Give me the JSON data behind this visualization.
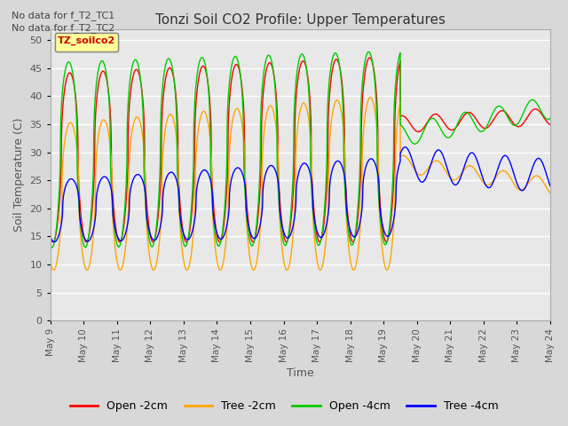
{
  "title": "Tonzi Soil CO2 Profile: Upper Temperatures",
  "xlabel": "Time",
  "ylabel": "Soil Temperature (C)",
  "ylim": [
    0,
    52
  ],
  "yticks": [
    0,
    5,
    10,
    15,
    20,
    25,
    30,
    35,
    40,
    45,
    50
  ],
  "annotations": [
    "No data for f_T2_TC1",
    "No data for f_T2_TC2"
  ],
  "legend_box_label": "TZ_soilco2",
  "legend_entries": [
    "Open -2cm",
    "Tree -2cm",
    "Open -4cm",
    "Tree -4cm"
  ],
  "line_colors": [
    "#ff0000",
    "#ffa500",
    "#00cc00",
    "#0000ff"
  ],
  "background_color": "#e8e8e8",
  "grid_color": "#ffffff",
  "xtick_labels": [
    "May 9",
    "May 10",
    "May 11",
    "May 12",
    "May 13",
    "May 14",
    "May 15",
    "May 16",
    "May 17",
    "May 18",
    "May 19",
    "May 20",
    "May 21",
    "May 22",
    "May 23",
    "May 24"
  ]
}
